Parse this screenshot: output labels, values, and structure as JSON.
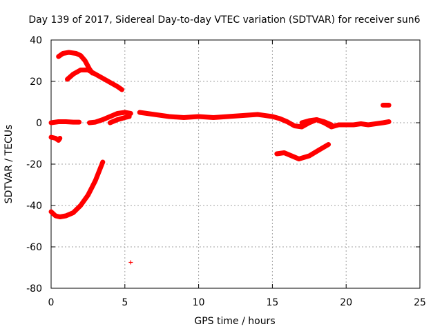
{
  "chart_data": {
    "type": "scatter",
    "title": "Day 139 of 2017, Sidereal Day-to-day VTEC variation (SDTVAR) for receiver sun6",
    "xlabel": "GPS time / hours",
    "ylabel": "SDTVAR / TECUs",
    "xlim": [
      0,
      25
    ],
    "ylim": [
      -80,
      40
    ],
    "xticks": [
      0,
      5,
      10,
      15,
      20,
      25
    ],
    "yticks": [
      -80,
      -60,
      -40,
      -20,
      0,
      20,
      40
    ],
    "grid": true,
    "color": "#ff0000",
    "series": [
      {
        "name": "arc-top-a",
        "points": [
          [
            0.5,
            32
          ],
          [
            0.8,
            33.5
          ],
          [
            1.2,
            34
          ],
          [
            1.7,
            33.5
          ],
          [
            2.0,
            32.5
          ],
          [
            2.3,
            30
          ],
          [
            2.6,
            26
          ],
          [
            2.8,
            24
          ]
        ]
      },
      {
        "name": "arc-top-b",
        "points": [
          [
            1.1,
            21
          ],
          [
            1.5,
            23.5
          ],
          [
            2.0,
            25.5
          ],
          [
            2.5,
            25.5
          ],
          [
            3.0,
            23.5
          ],
          [
            3.5,
            21.5
          ],
          [
            4.0,
            19.5
          ],
          [
            4.5,
            17.5
          ],
          [
            4.8,
            16
          ]
        ]
      },
      {
        "name": "arc-zero-start",
        "points": [
          [
            0,
            0
          ],
          [
            0.5,
            0.5
          ],
          [
            1.0,
            0.5
          ],
          [
            1.5,
            0.3
          ],
          [
            1.9,
            0.3
          ]
        ]
      },
      {
        "name": "arc-small-neg",
        "points": [
          [
            0,
            -7
          ],
          [
            0.3,
            -7.5
          ],
          [
            0.5,
            -8.5
          ],
          [
            0.6,
            -7.5
          ]
        ]
      },
      {
        "name": "arc-zero-rise",
        "points": [
          [
            2.6,
            0
          ],
          [
            3.0,
            0.3
          ],
          [
            3.5,
            1.5
          ],
          [
            4.0,
            3
          ],
          [
            4.5,
            4.5
          ],
          [
            5.0,
            5
          ],
          [
            5.4,
            4.5
          ]
        ]
      },
      {
        "name": "arc-zero-low",
        "points": [
          [
            4.0,
            0
          ],
          [
            4.5,
            1.5
          ],
          [
            5.0,
            2.5
          ],
          [
            5.3,
            3
          ]
        ]
      },
      {
        "name": "arc-zero-main",
        "points": [
          [
            6.0,
            5
          ],
          [
            7,
            4
          ],
          [
            8,
            3
          ],
          [
            9,
            2.5
          ],
          [
            10,
            3
          ],
          [
            11,
            2.5
          ],
          [
            12,
            3
          ],
          [
            13,
            3.5
          ],
          [
            14,
            4
          ],
          [
            15,
            3
          ],
          [
            15.5,
            2
          ],
          [
            16,
            0.5
          ],
          [
            16.5,
            -1.5
          ],
          [
            17,
            -2
          ],
          [
            17.5,
            0
          ],
          [
            18,
            1.5
          ],
          [
            18.5,
            0
          ],
          [
            19,
            -2
          ],
          [
            19.5,
            -1
          ],
          [
            20,
            -1
          ],
          [
            20.5,
            -1
          ],
          [
            21,
            -0.5
          ],
          [
            21.5,
            -1
          ],
          [
            22,
            -0.5
          ],
          [
            22.5,
            0
          ],
          [
            22.9,
            0.5
          ]
        ]
      },
      {
        "name": "arc-zero-branch",
        "points": [
          [
            17,
            0
          ],
          [
            17.5,
            1
          ],
          [
            18,
            1.5
          ],
          [
            18.5,
            0.5
          ],
          [
            19,
            -1
          ]
        ]
      },
      {
        "name": "arc-mid-neg",
        "points": [
          [
            15.3,
            -15
          ],
          [
            15.8,
            -14.5
          ],
          [
            16.3,
            -16
          ],
          [
            16.8,
            -17.5
          ],
          [
            17.5,
            -16
          ],
          [
            18.2,
            -13
          ],
          [
            18.8,
            -10.5
          ]
        ]
      },
      {
        "name": "arc-late-high",
        "points": [
          [
            22.5,
            8.5
          ],
          [
            22.9,
            8.5
          ]
        ]
      },
      {
        "name": "arc-large-neg",
        "points": [
          [
            0,
            -43
          ],
          [
            0.3,
            -45
          ],
          [
            0.6,
            -45.5
          ],
          [
            1.0,
            -45
          ],
          [
            1.5,
            -43.5
          ],
          [
            2.0,
            -40
          ],
          [
            2.5,
            -35
          ],
          [
            3.0,
            -28
          ],
          [
            3.5,
            -19
          ]
        ]
      }
    ],
    "points": [
      [
        5.4,
        -67.5
      ]
    ]
  }
}
